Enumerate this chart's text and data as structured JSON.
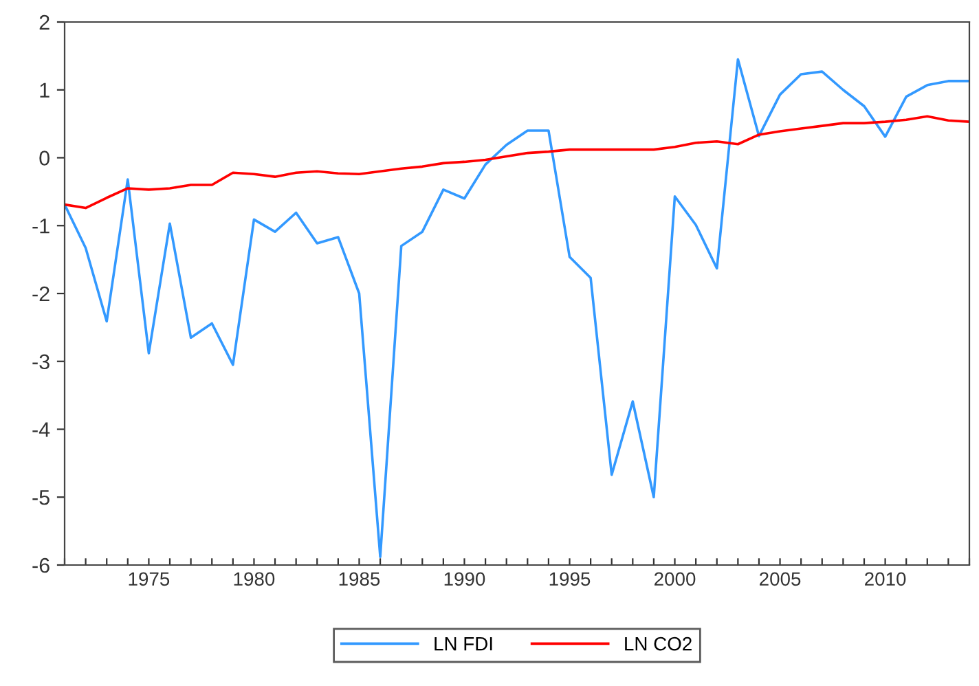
{
  "chart_data": {
    "type": "line",
    "x": [
      1971,
      1972,
      1973,
      1974,
      1975,
      1976,
      1977,
      1978,
      1979,
      1980,
      1981,
      1982,
      1983,
      1984,
      1985,
      1986,
      1987,
      1988,
      1989,
      1990,
      1991,
      1992,
      1993,
      1994,
      1995,
      1996,
      1997,
      1998,
      1999,
      2000,
      2001,
      2002,
      2003,
      2004,
      2005,
      2006,
      2007,
      2008,
      2009,
      2010,
      2011,
      2012,
      2013,
      2014
    ],
    "series": [
      {
        "name": "LN FDI",
        "color": "#3399ff",
        "values": [
          -0.69,
          -1.33,
          -2.41,
          -0.32,
          -2.88,
          -0.97,
          -2.65,
          -2.44,
          -3.05,
          -0.91,
          -1.09,
          -0.81,
          -1.26,
          -1.17,
          -2.0,
          -5.88,
          -1.3,
          -1.09,
          -0.47,
          -0.6,
          -0.1,
          0.19,
          0.4,
          0.4,
          -1.46,
          -1.77,
          -4.67,
          -3.59,
          -5.0,
          -0.57,
          -0.99,
          -1.63,
          1.45,
          0.32,
          0.93,
          1.23,
          1.27,
          1.0,
          0.76,
          0.31,
          0.9,
          1.07,
          1.13,
          1.13
        ]
      },
      {
        "name": "LN CO2",
        "color": "#ff0000",
        "values": [
          -0.69,
          -0.74,
          -0.59,
          -0.45,
          -0.47,
          -0.45,
          -0.4,
          -0.4,
          -0.22,
          -0.24,
          -0.28,
          -0.22,
          -0.2,
          -0.23,
          -0.24,
          -0.2,
          -0.16,
          -0.13,
          -0.08,
          -0.06,
          -0.03,
          0.02,
          0.07,
          0.09,
          0.12,
          0.12,
          0.12,
          0.12,
          0.12,
          0.16,
          0.22,
          0.24,
          0.2,
          0.34,
          0.39,
          0.43,
          0.47,
          0.51,
          0.51,
          0.53,
          0.56,
          0.61,
          0.55,
          0.53
        ]
      }
    ],
    "xlim": [
      1971,
      2014
    ],
    "xticks": [
      {
        "value": 1971,
        "label": null
      },
      {
        "value": 1972,
        "label": null
      },
      {
        "value": 1973,
        "label": null
      },
      {
        "value": 1974,
        "label": null
      },
      1975,
      {
        "value": 1976,
        "label": null
      },
      {
        "value": 1977,
        "label": null
      },
      {
        "value": 1978,
        "label": null
      },
      {
        "value": 1979,
        "label": null
      },
      1980,
      {
        "value": 1981,
        "label": null
      },
      {
        "value": 1982,
        "label": null
      },
      {
        "value": 1983,
        "label": null
      },
      {
        "value": 1984,
        "label": null
      },
      1985,
      {
        "value": 1986,
        "label": null
      },
      {
        "value": 1987,
        "label": null
      },
      {
        "value": 1988,
        "label": null
      },
      {
        "value": 1989,
        "label": null
      },
      1990,
      {
        "value": 1991,
        "label": null
      },
      {
        "value": 1992,
        "label": null
      },
      {
        "value": 1993,
        "label": null
      },
      {
        "value": 1994,
        "label": null
      },
      1995,
      {
        "value": 1996,
        "label": null
      },
      {
        "value": 1997,
        "label": null
      },
      {
        "value": 1998,
        "label": null
      },
      {
        "value": 1999,
        "label": null
      },
      2000,
      {
        "value": 2001,
        "label": null
      },
      {
        "value": 2002,
        "label": null
      },
      {
        "value": 2003,
        "label": null
      },
      {
        "value": 2004,
        "label": null
      },
      2005,
      {
        "value": 2006,
        "label": null
      },
      {
        "value": 2007,
        "label": null
      },
      {
        "value": 2008,
        "label": null
      },
      {
        "value": 2009,
        "label": null
      },
      2010,
      {
        "value": 2011,
        "label": null
      },
      {
        "value": 2012,
        "label": null
      },
      {
        "value": 2013,
        "label": null
      },
      {
        "value": 2014,
        "label": null
      }
    ],
    "ylim": [
      -6,
      2
    ],
    "yticks": [
      -6,
      -5,
      -4,
      -3,
      -2,
      -1,
      0,
      1,
      2
    ],
    "grid": false,
    "legend": "bottom",
    "marker": "none",
    "line_style": "solid"
  }
}
